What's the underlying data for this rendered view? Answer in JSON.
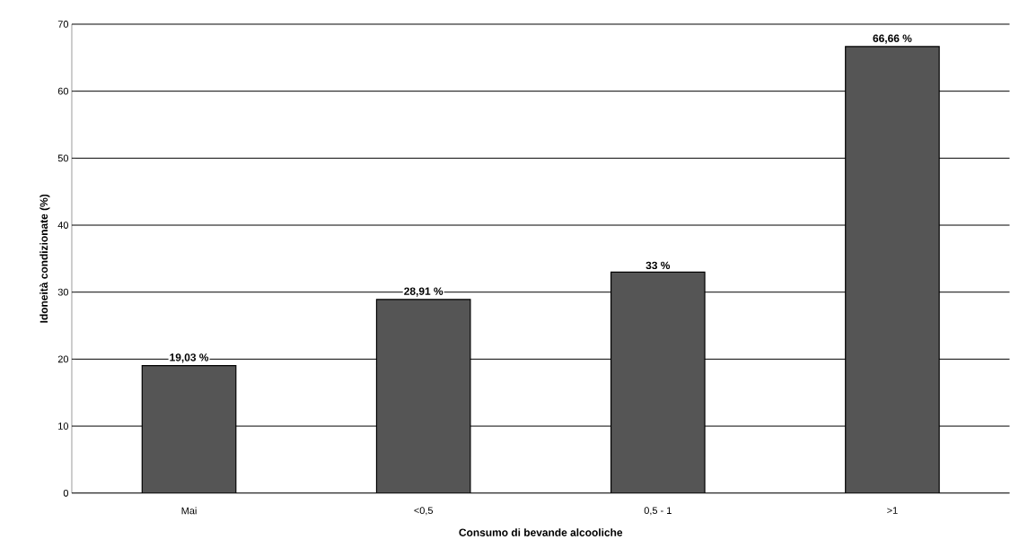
{
  "chart_data": {
    "type": "bar",
    "xlabel": "Consumo di bevande alcooliche",
    "ylabel": "Idoneità condizionate (%)",
    "categories": [
      "Mai",
      "<0,5",
      "0,5 - 1",
      ">1"
    ],
    "values": [
      19.03,
      28.91,
      33,
      66.66
    ],
    "value_labels": [
      "19,03 %",
      "28,91 %",
      "33 %",
      "66,66 %"
    ],
    "color": "#555555",
    "ylim": [
      0,
      70
    ],
    "yticks": [
      0,
      10,
      20,
      30,
      40,
      50,
      60,
      70
    ],
    "grid": "y"
  }
}
